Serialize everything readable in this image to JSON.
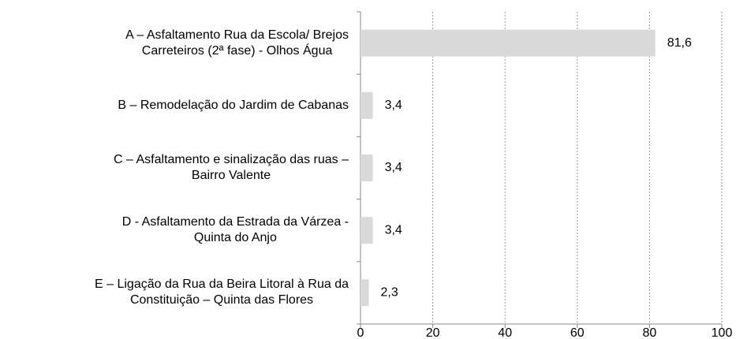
{
  "chart_data": {
    "type": "barh",
    "categories": [
      "A – Asfaltamento Rua da Escola/ Brejos\nCarreteiros (2ª fase) - Olhos Água",
      "B – Remodelação do Jardim de Cabanas",
      "C – Asfaltamento e sinalização das ruas –\nBairro Valente",
      "D - Asfaltamento da Estrada da Várzea -\nQuinta do Anjo",
      "E – Ligação da Rua da Beira Litoral à Rua da\nConstituição – Quinta das Flores"
    ],
    "values": [
      81.6,
      3.4,
      3.4,
      3.4,
      2.3
    ],
    "value_labels": [
      "81,6",
      "3,4",
      "3,4",
      "3,4",
      "2,3"
    ],
    "color": "#d9d9d9",
    "xlim": [
      0,
      100
    ],
    "xticks": [
      0,
      20,
      40,
      60,
      80,
      100
    ],
    "grid": true
  }
}
